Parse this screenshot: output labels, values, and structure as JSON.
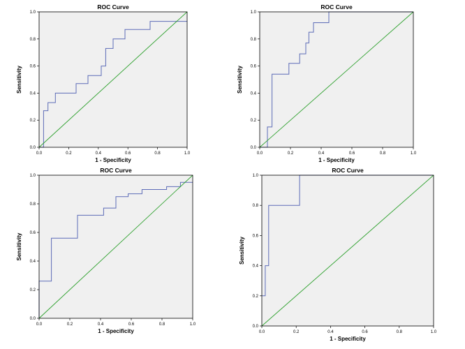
{
  "colors": {
    "plot_background": "#f0f0f0",
    "roc_line": "#5c6bb7",
    "reference_line": "#2ca02c",
    "frame": "#000000"
  },
  "chart_data": [
    {
      "type": "line",
      "title": "ROC Curve",
      "xlabel": "1 - Specificity",
      "ylabel": "Sensitivity",
      "xlim": [
        0,
        1
      ],
      "ylim": [
        0,
        1
      ],
      "xticks": [
        "0.0",
        "0.2",
        "0.4",
        "0.6",
        "0.8",
        "1.0"
      ],
      "yticks": [
        "0.0",
        "0.2",
        "0.4",
        "0.6",
        "0.8",
        "1.0"
      ],
      "grid": false,
      "series": [
        {
          "name": "roc",
          "x": [
            0,
            0.03,
            0.03,
            0.06,
            0.06,
            0.11,
            0.11,
            0.25,
            0.25,
            0.33,
            0.33,
            0.42,
            0.42,
            0.45,
            0.45,
            0.5,
            0.5,
            0.58,
            0.58,
            0.75,
            0.75,
            1.0
          ],
          "y": [
            0,
            0,
            0.27,
            0.27,
            0.33,
            0.33,
            0.4,
            0.4,
            0.47,
            0.47,
            0.53,
            0.53,
            0.6,
            0.6,
            0.73,
            0.73,
            0.8,
            0.8,
            0.87,
            0.87,
            0.93,
            0.93
          ]
        },
        {
          "name": "reference",
          "x": [
            0,
            1
          ],
          "y": [
            0,
            1
          ]
        }
      ]
    },
    {
      "type": "line",
      "title": "ROC Curve",
      "xlabel": "1 - Specificity",
      "ylabel": "Sensitivity",
      "xlim": [
        0,
        1
      ],
      "ylim": [
        0,
        1
      ],
      "xticks": [
        "0.0",
        "0.2",
        "0.4",
        "0.6",
        "0.8",
        "1.0"
      ],
      "yticks": [
        "0.0",
        "0.2",
        "0.4",
        "0.6",
        "0.8",
        "1.0"
      ],
      "grid": false,
      "series": [
        {
          "name": "roc",
          "x": [
            0,
            0.05,
            0.05,
            0.08,
            0.08,
            0.19,
            0.19,
            0.26,
            0.26,
            0.3,
            0.3,
            0.32,
            0.32,
            0.35,
            0.35,
            0.45,
            0.45,
            0.91,
            0.91,
            1.0
          ],
          "y": [
            0,
            0,
            0.15,
            0.15,
            0.54,
            0.54,
            0.62,
            0.62,
            0.69,
            0.69,
            0.77,
            0.77,
            0.85,
            0.85,
            0.92,
            0.92,
            1.0,
            1.0,
            1.0,
            1.0
          ]
        },
        {
          "name": "reference",
          "x": [
            0,
            1
          ],
          "y": [
            0,
            1
          ]
        }
      ]
    },
    {
      "type": "line",
      "title": "ROC Curve",
      "xlabel": "1 - Specificity",
      "ylabel": "Sensitivity",
      "xlim": [
        0,
        1
      ],
      "ylim": [
        0,
        1
      ],
      "xticks": [
        "0.0",
        "0.2",
        "0.4",
        "0.6",
        "0.8",
        "1.0"
      ],
      "yticks": [
        "0.0",
        "0.2",
        "0.4",
        "0.6",
        "0.8",
        "1.0"
      ],
      "grid": false,
      "series": [
        {
          "name": "roc",
          "x": [
            0,
            0,
            0.08,
            0.08,
            0.25,
            0.25,
            0.42,
            0.42,
            0.5,
            0.5,
            0.58,
            0.58,
            0.67,
            0.67,
            0.83,
            0.83,
            0.92,
            0.92,
            1.0
          ],
          "y": [
            0,
            0.26,
            0.26,
            0.56,
            0.56,
            0.72,
            0.72,
            0.77,
            0.77,
            0.85,
            0.85,
            0.87,
            0.87,
            0.9,
            0.9,
            0.92,
            0.92,
            0.95,
            0.95
          ]
        },
        {
          "name": "reference",
          "x": [
            0,
            1
          ],
          "y": [
            0,
            1
          ]
        }
      ]
    },
    {
      "type": "line",
      "title": "ROC Curve",
      "xlabel": "1 - Specificity",
      "ylabel": "Sensitivity",
      "xlim": [
        0,
        1
      ],
      "ylim": [
        0,
        1
      ],
      "xticks": [
        "0.0",
        "0.2",
        "0.4",
        "0.6",
        "0.8",
        "1.0"
      ],
      "yticks": [
        "0.0",
        "0.2",
        "0.4",
        "0.6",
        "0.8",
        "1.0"
      ],
      "grid": false,
      "series": [
        {
          "name": "roc",
          "x": [
            0,
            0.02,
            0.02,
            0.04,
            0.04,
            0.22,
            0.22,
            1.0
          ],
          "y": [
            0.2,
            0.2,
            0.4,
            0.4,
            0.8,
            0.8,
            1.0,
            1.0
          ]
        },
        {
          "name": "reference",
          "x": [
            0,
            1
          ],
          "y": [
            0,
            1
          ]
        }
      ]
    }
  ]
}
